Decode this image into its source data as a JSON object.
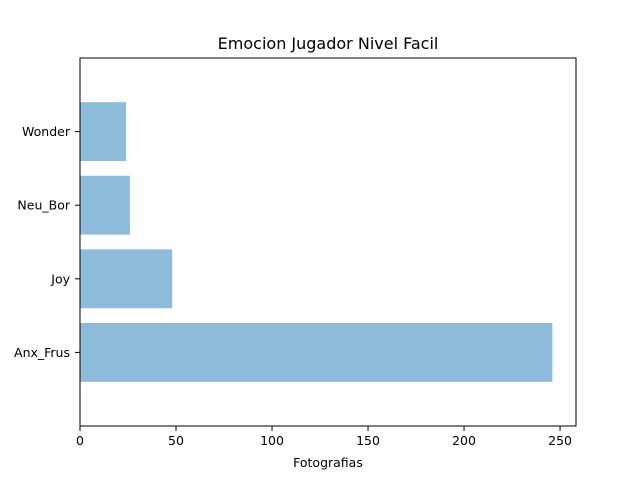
{
  "chart_data": {
    "type": "bar",
    "orientation": "horizontal",
    "title": "Emocion Jugador Nivel Facil",
    "xlabel": "Fotografias",
    "ylabel": "",
    "categories": [
      "Anx_Frus",
      "Joy",
      "Neu_Bor",
      "Wonder"
    ],
    "values": [
      246,
      48,
      26,
      24
    ],
    "xlim": [
      0,
      258.3
    ],
    "xticks": [
      0,
      50,
      100,
      150,
      200,
      250
    ],
    "bar_color": "#8fbbda",
    "grid": false,
    "legend": "none"
  }
}
